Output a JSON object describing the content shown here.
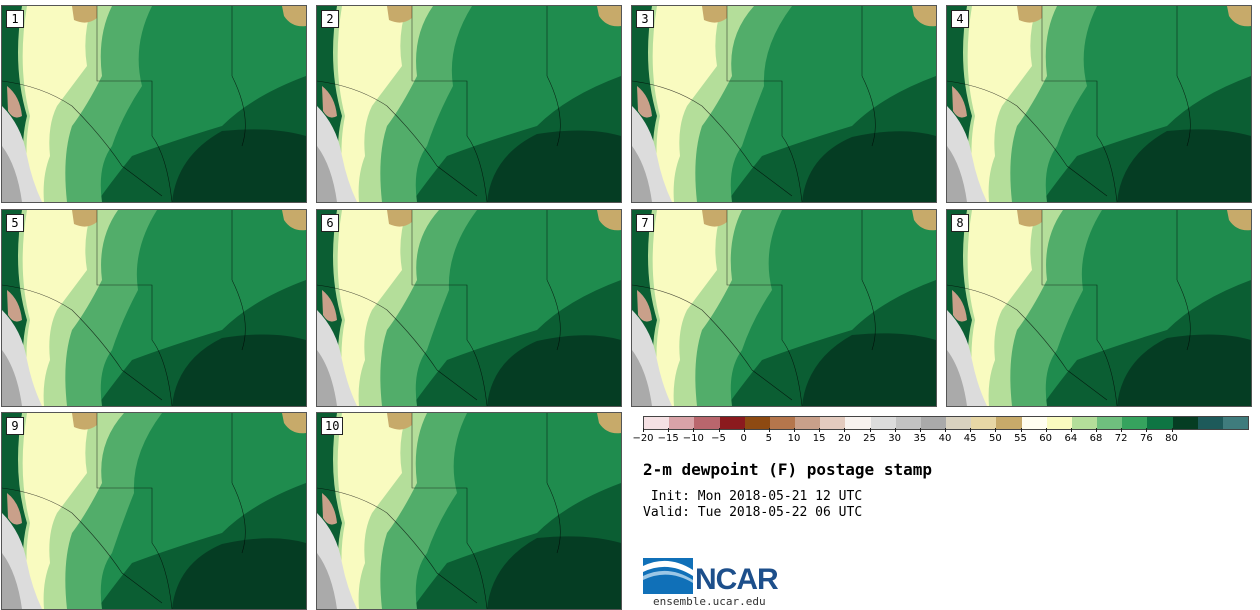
{
  "members": [
    "1",
    "2",
    "3",
    "4",
    "5",
    "6",
    "7",
    "8",
    "9",
    "10"
  ],
  "colorbar": {
    "colors": [
      "#f5e1e4",
      "#d9a3a8",
      "#b9666d",
      "#8b1a1e",
      "#8e4a12",
      "#b5764c",
      "#c9a08a",
      "#e3cbbf",
      "#f7f2ef",
      "#dcdcdc",
      "#c3c3c3",
      "#aaaaaa",
      "#d9d2c0",
      "#e7d7a6",
      "#c7aa6a",
      "#fffef0",
      "#f9fbc0",
      "#b4de9a",
      "#6fc07e",
      "#36a35e",
      "#0e7543",
      "#053d23",
      "#1d5a5a",
      "#3f7c7d"
    ],
    "tick_labels": [
      "−20",
      "−15",
      "−10",
      "−5",
      "0",
      "5",
      "10",
      "15",
      "20",
      "25",
      "30",
      "35",
      "40",
      "45",
      "50",
      "55",
      "60",
      "64",
      "68",
      "72",
      "76",
      "80"
    ]
  },
  "title": "2-m dewpoint (F) postage stamp",
  "init_text": " Init: Mon 2018-05-21 12 UTC",
  "valid_text": "Valid: Tue 2018-05-22 06 UTC",
  "logo_text": "NCAR",
  "site_text": "ensemble.ucar.edu"
}
